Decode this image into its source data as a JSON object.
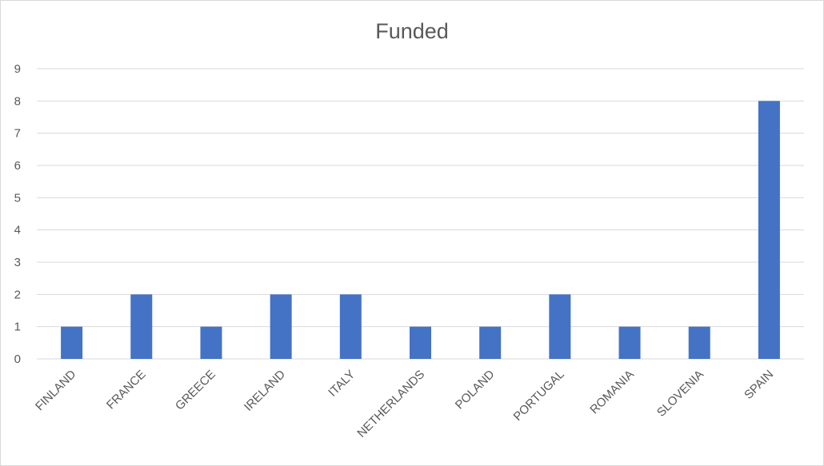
{
  "chart_data": {
    "type": "bar",
    "title": "Funded",
    "categories": [
      "FINLAND",
      "FRANCE",
      "GREECE",
      "IRELAND",
      "ITALY",
      "NETHERLANDS",
      "POLAND",
      "PORTUGAL",
      "ROMANIA",
      "SLOVENIA",
      "SPAIN"
    ],
    "values": [
      1,
      2,
      1,
      2,
      2,
      1,
      1,
      2,
      1,
      1,
      8
    ],
    "xlabel": "",
    "ylabel": "",
    "ylim": [
      0,
      9
    ],
    "yticks": [
      "0",
      "1",
      "2",
      "3",
      "4",
      "5",
      "6",
      "7",
      "8",
      "9"
    ],
    "grid": true,
    "legend": "none",
    "bar_color": "#4472c4"
  }
}
